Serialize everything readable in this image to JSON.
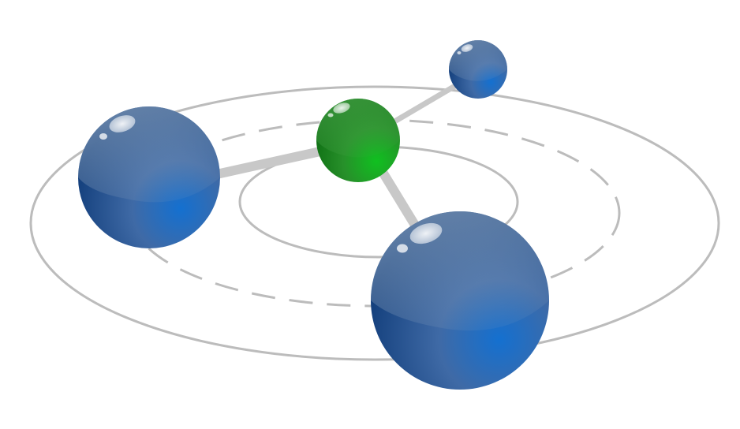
{
  "colors": {
    "orbit": "#bcbcbc",
    "bond": "#c8c8c8",
    "blue_light": "#8aa1bd",
    "blue_mid": "#3f6aa6",
    "blue_dark": "#133f7c",
    "blue_bright": "#1470d0",
    "green_light": "#4fa94f",
    "green_mid": "#27902a",
    "green_dark": "#0d6d12",
    "green_bright": "#10c020",
    "highlight": "#ffffff"
  },
  "diagram": {
    "center": "green-sphere",
    "orbits": [
      "outer-solid",
      "middle-dashed",
      "inner-solid"
    ],
    "spheres": [
      {
        "id": "left",
        "color": "blue",
        "bonded_to": "center"
      },
      {
        "id": "bottom",
        "color": "blue",
        "bonded_to": "center"
      },
      {
        "id": "top-right",
        "color": "blue",
        "bonded_to": "center"
      }
    ]
  }
}
